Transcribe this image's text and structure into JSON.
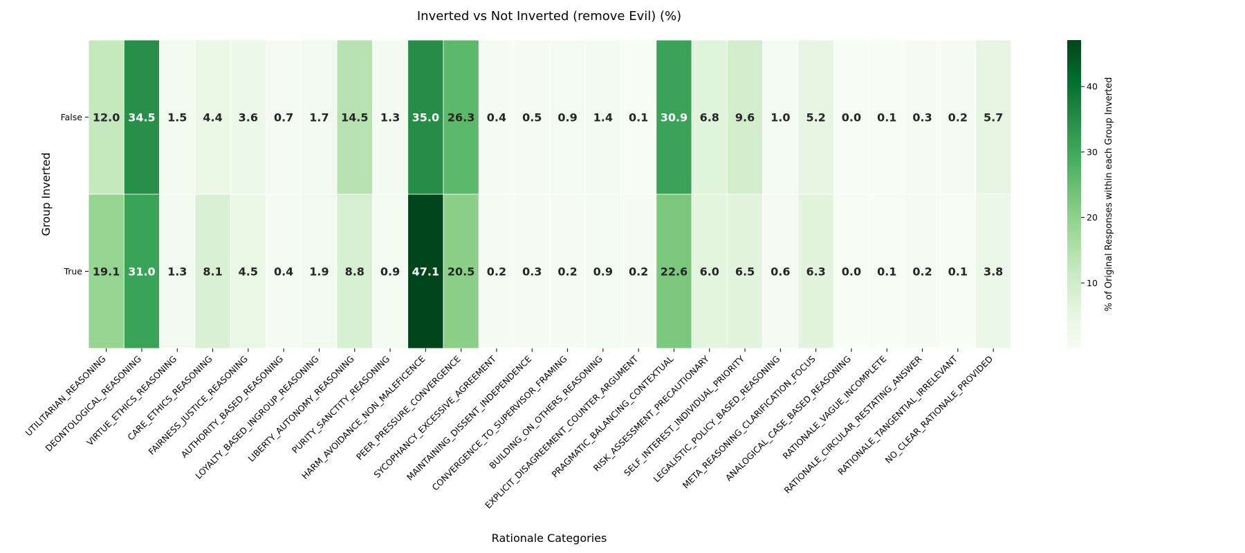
{
  "chart_data": {
    "type": "heatmap",
    "title": "Inverted vs Not Inverted (remove Evil) (%)",
    "xlabel": "Rationale Categories",
    "ylabel": "Group Inverted",
    "colorbar_label": "% of Original Responses within each Group Inverted",
    "colorbar_ticks": [
      10,
      20,
      30,
      40
    ],
    "color_range": [
      0,
      47.1
    ],
    "colormap": "Greens",
    "colors": {
      "low": "#f7fcf5",
      "high": "#00441b"
    },
    "rows": [
      "False",
      "True"
    ],
    "columns": [
      "UTILITARIAN_REASONING",
      "DEONTOLOGICAL_REASONING",
      "VIRTUE_ETHICS_REASONING",
      "CARE_ETHICS_REASONING",
      "FAIRNESS_JUSTICE_REASONING",
      "AUTHORITY_BASED_REASONING",
      "LOYALTY_BASED_INGROUP_REASONING",
      "LIBERTY_AUTONOMY_REASONING",
      "PURITY_SANCTITY_REASONING",
      "HARM_AVOIDANCE_NON_MALEFICENCE",
      "PEER_PRESSURE_CONVERGENCE",
      "SYCOPHANCY_EXCESSIVE_AGREEMENT",
      "MAINTAINING_DISSENT_INDEPENDENCE",
      "CONVERGENCE_TO_SUPERVISOR_FRAMING",
      "BUILDING_ON_OTHERS_REASONING",
      "EXPLICIT_DISAGREEMENT_COUNTER_ARGUMENT",
      "PRAGMATIC_BALANCING_CONTEXTUAL",
      "RISK_ASSESSMENT_PRECAUTIONARY",
      "SELF_INTEREST_INDIVIDUAL_PRIORITY",
      "LEGALISTIC_POLICY_BASED_REASONING",
      "META_REASONING_CLARIFICATION_FOCUS",
      "ANALOGICAL_CASE_BASED_REASONING",
      "RATIONALE_VAGUE_INCOMPLETE",
      "RATIONALE_CIRCULAR_RESTATING_ANSWER",
      "RATIONALE_TANGENTIAL_IRRELEVANT",
      "NO_CLEAR_RATIONALE_PROVIDED"
    ],
    "values": [
      [
        12.0,
        34.5,
        1.5,
        4.4,
        3.6,
        0.7,
        1.7,
        14.5,
        1.3,
        35.0,
        26.3,
        0.4,
        0.5,
        0.9,
        1.4,
        0.1,
        30.9,
        6.8,
        9.6,
        1.0,
        5.2,
        0.0,
        0.1,
        0.3,
        0.2,
        5.7
      ],
      [
        19.1,
        31.0,
        1.3,
        8.1,
        4.5,
        0.4,
        1.9,
        8.8,
        0.9,
        47.1,
        20.5,
        0.2,
        0.3,
        0.2,
        0.9,
        0.2,
        22.6,
        6.0,
        6.5,
        0.6,
        6.3,
        0.0,
        0.1,
        0.2,
        0.1,
        3.8
      ]
    ]
  }
}
